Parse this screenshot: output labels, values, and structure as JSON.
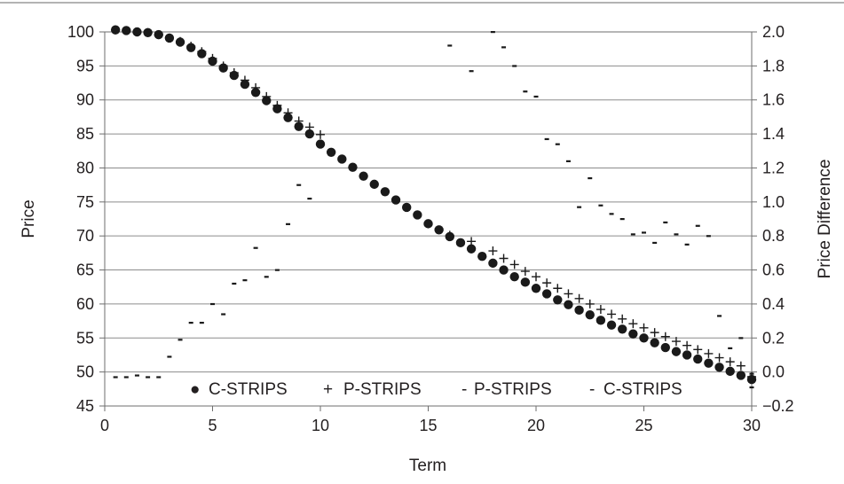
{
  "chart_data": {
    "type": "scatter",
    "title": "",
    "xlabel": "Term",
    "ylabel": "Price",
    "y2label": "Price Difference",
    "xlim": [
      0,
      30
    ],
    "ylim": [
      45,
      100
    ],
    "y2lim": [
      -0.2,
      2.0
    ],
    "xticks": [
      "0",
      "5",
      "10",
      "15",
      "20",
      "25",
      "30"
    ],
    "yticks": [
      "45",
      "50",
      "55",
      "60",
      "65",
      "70",
      "75",
      "80",
      "85",
      "90",
      "95",
      "100"
    ],
    "y2ticks": [
      "−0.2",
      "0.0",
      "0.2",
      "0.4",
      "0.6",
      "0.8",
      "1.0",
      "1.2",
      "1.4",
      "1.6",
      "1.8",
      "2.0"
    ],
    "grid": true,
    "legend_position": "bottom-center",
    "colors": {
      "text": "#231f20",
      "marks": "#1a1a1a",
      "grid": "#8c8c8c",
      "frame": "#6d6d6d"
    },
    "series": [
      {
        "name": "C-STRIPS",
        "marker": "filled-circle",
        "axis": "left",
        "x": [
          0.5,
          1,
          1.5,
          2,
          2.5,
          3,
          3.5,
          4,
          4.5,
          5,
          5.5,
          6,
          6.5,
          7,
          7.5,
          8,
          8.5,
          9,
          9.5,
          10,
          10.5,
          11,
          11.5,
          12,
          12.5,
          13,
          13.5,
          14,
          14.5,
          15,
          15.5,
          16,
          16.5,
          17,
          17.5,
          18,
          18.5,
          19,
          19.5,
          20,
          20.5,
          21,
          21.5,
          22,
          22.5,
          23,
          23.5,
          24,
          24.5,
          25,
          25.5,
          26,
          26.5,
          27,
          27.5,
          28,
          28.5,
          29,
          29.5,
          30
        ],
        "y": [
          100.3,
          100.2,
          100.0,
          99.9,
          99.6,
          99.1,
          98.5,
          97.7,
          96.8,
          95.7,
          94.7,
          93.6,
          92.3,
          91.1,
          89.9,
          88.7,
          87.4,
          86.1,
          85.0,
          83.5,
          82.3,
          81.3,
          80.1,
          78.8,
          77.6,
          76.5,
          75.3,
          74.2,
          73.1,
          71.8,
          70.9,
          69.9,
          69.0,
          68.1,
          67.0,
          66.0,
          65.0,
          64.0,
          63.2,
          62.3,
          61.5,
          60.6,
          59.9,
          59.1,
          58.4,
          57.6,
          56.9,
          56.3,
          55.6,
          55.0,
          54.3,
          53.6,
          53.0,
          52.5,
          51.9,
          51.3,
          50.7,
          50.1,
          49.5,
          48.9
        ]
      },
      {
        "name": "P-STRIPS",
        "marker": "plus",
        "axis": "left",
        "x": [
          0.5,
          1,
          1.5,
          2,
          2.5,
          3,
          3.5,
          4,
          4.5,
          5,
          5.5,
          6,
          6.5,
          7,
          7.5,
          8,
          8.5,
          9,
          9.5,
          10,
          16,
          17,
          18,
          18.5,
          19,
          19.5,
          20,
          20.5,
          21,
          21.5,
          22,
          22.5,
          23,
          23.5,
          24,
          24.5,
          25,
          25.5,
          26,
          26.5,
          27,
          27.5,
          28,
          28.5,
          29,
          29.5,
          30
        ],
        "y": [
          100.3,
          100.2,
          100.0,
          99.9,
          99.6,
          99.1,
          98.6,
          97.9,
          97.1,
          96.1,
          95.0,
          94.0,
          92.9,
          91.8,
          90.5,
          89.2,
          88.1,
          86.9,
          86.0,
          84.9,
          70.1,
          69.2,
          67.8,
          66.7,
          65.8,
          64.8,
          64.0,
          63.1,
          62.3,
          61.5,
          60.8,
          60.0,
          59.2,
          58.5,
          57.8,
          57.1,
          56.5,
          55.8,
          55.2,
          54.5,
          53.9,
          53.3,
          52.7,
          52.1,
          51.5,
          50.9,
          49.3
        ]
      },
      {
        "name": "P-STRIPS",
        "marker": "dash",
        "axis": "right",
        "x": [
          0.5,
          1,
          1.5,
          2,
          2.5,
          3,
          3.5,
          4,
          4.5,
          5,
          5.5,
          6,
          6.5,
          7,
          7.5,
          8,
          8.5,
          9,
          9.5,
          16,
          17,
          18,
          18.5,
          19,
          19.5,
          20,
          20.5,
          21,
          21.5,
          22,
          22.5,
          23,
          23.5,
          24,
          24.5,
          25,
          25.5,
          26,
          26.5,
          27,
          27.5,
          28,
          28.5,
          29,
          29.5,
          30
        ],
        "y": [
          -0.03,
          -0.03,
          -0.02,
          -0.03,
          -0.03,
          0.09,
          0.19,
          0.29,
          0.29,
          0.4,
          0.34,
          0.52,
          0.54,
          0.73,
          0.56,
          0.6,
          0.87,
          1.1,
          1.02,
          1.92,
          1.77,
          2.0,
          1.91,
          1.8,
          1.65,
          1.62,
          1.37,
          1.34,
          1.24,
          0.97,
          1.14,
          0.98,
          0.93,
          0.9,
          0.81,
          0.82,
          0.76,
          0.88,
          0.81,
          0.75,
          0.86,
          0.8,
          0.33,
          0.14,
          0.2,
          -0.01
        ]
      },
      {
        "name": "C-STRIPS",
        "marker": "dash",
        "axis": "right",
        "x": [
          30
        ],
        "y": [
          -0.09
        ]
      }
    ]
  },
  "legend": {
    "items": [
      {
        "symbol": "●",
        "label": "C-STRIPS"
      },
      {
        "symbol": "+",
        "label": "P-STRIPS"
      },
      {
        "symbol": "-",
        "label": "P-STRIPS"
      },
      {
        "symbol": "-",
        "label": "C-STRIPS"
      }
    ]
  }
}
